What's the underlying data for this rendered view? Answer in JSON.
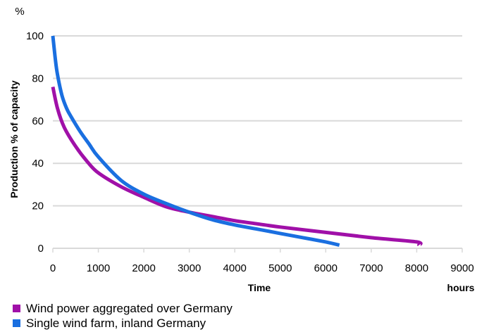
{
  "chart_data": {
    "type": "line",
    "y_unit": "%",
    "ylabel": "Production % of capacity",
    "xlabel": "Time",
    "x_unit": "hours",
    "xlim": [
      0,
      9000
    ],
    "ylim": [
      0,
      100
    ],
    "x_ticks": [
      "0",
      "1000",
      "2000",
      "3000",
      "4000",
      "5000",
      "6000",
      "7000",
      "8000",
      "9000"
    ],
    "y_ticks": [
      "0",
      "20",
      "40",
      "60",
      "80",
      "100"
    ],
    "grid": "horizontal",
    "legend_position": "bottom-left",
    "series": [
      {
        "name": "Wind power aggregated over Germany",
        "color": "#a010a8",
        "x": [
          0,
          100,
          250,
          500,
          750,
          1000,
          1500,
          2000,
          2500,
          3000,
          3500,
          4000,
          4500,
          5000,
          6000,
          7000,
          8000,
          8050
        ],
        "y": [
          76,
          66,
          57,
          48,
          41,
          35.5,
          29,
          24,
          19.5,
          17,
          15,
          13,
          11.5,
          10,
          7.5,
          5,
          3,
          1.5
        ]
      },
      {
        "name": "Single wind farm, inland Germany",
        "color": "#1a6fe0",
        "x": [
          0,
          50,
          100,
          200,
          300,
          400,
          600,
          800,
          1000,
          1500,
          2000,
          2500,
          3000,
          3500,
          4000,
          4500,
          5000,
          5500,
          6000,
          6300
        ],
        "y": [
          100,
          90,
          82,
          72,
          66,
          62,
          55,
          49,
          43,
          32,
          25.5,
          21,
          17,
          13.5,
          11,
          9,
          7,
          5,
          3,
          1.5
        ]
      }
    ]
  }
}
